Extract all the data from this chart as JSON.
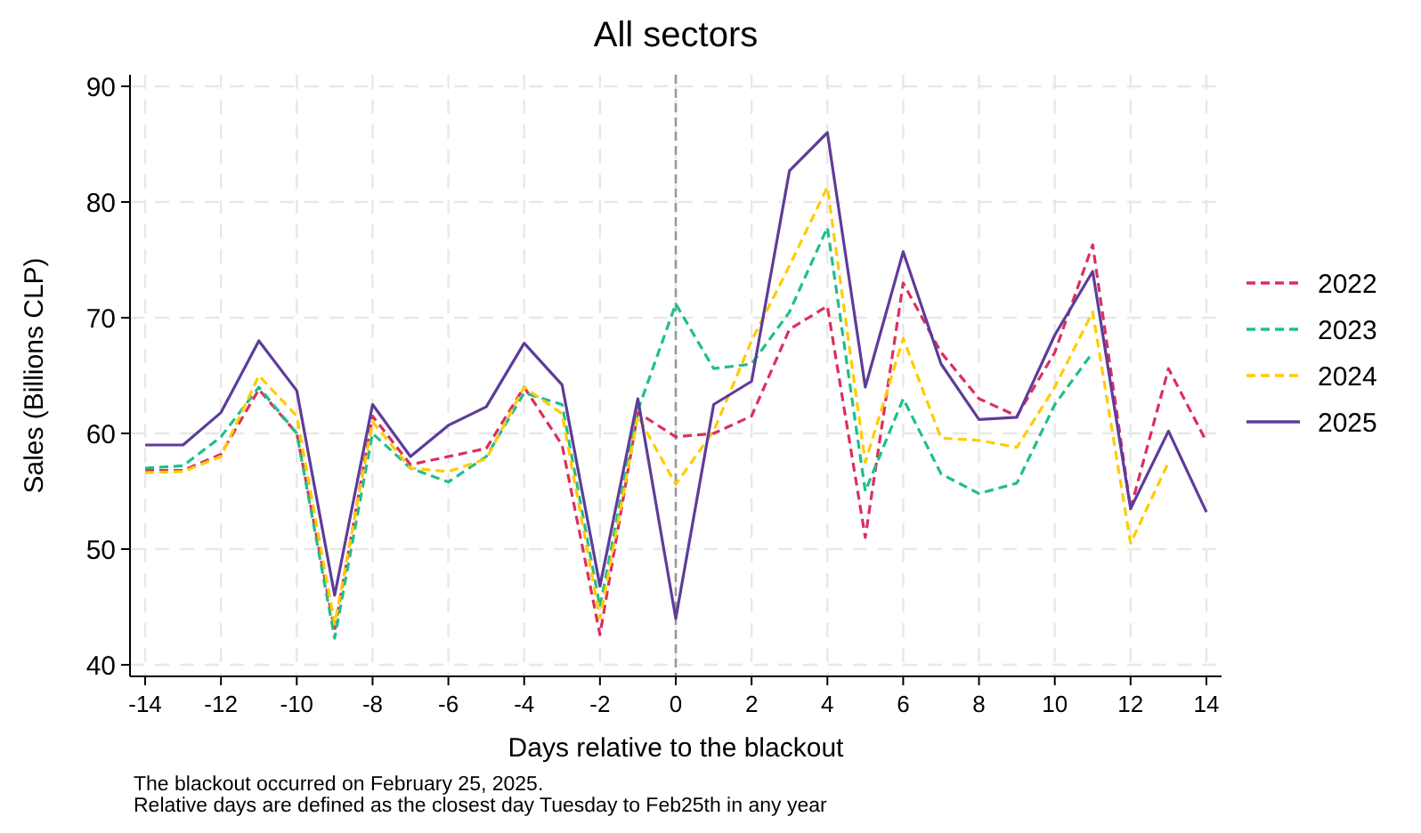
{
  "chart_data": {
    "type": "line",
    "title": "All sectors",
    "xlabel": "Days relative to the blackout",
    "ylabel": "Sales (Billions CLP)",
    "x": [
      -14,
      -13,
      -12,
      -11,
      -10,
      -9,
      -8,
      -7,
      -6,
      -5,
      -4,
      -3,
      -2,
      -1,
      0,
      1,
      2,
      3,
      4,
      5,
      6,
      7,
      8,
      9,
      10,
      11,
      12,
      13,
      14
    ],
    "series": [
      {
        "name": "2022",
        "color": "#dc2f5e",
        "line_style": "dashed",
        "values": [
          56.8,
          56.8,
          58.2,
          63.8,
          60,
          43,
          61.5,
          57.3,
          58,
          58.7,
          64,
          59,
          42.6,
          61.8,
          59.7,
          60,
          61.5,
          69,
          71,
          51,
          73,
          67,
          63,
          61.5,
          67,
          76.3,
          53.5,
          65.6,
          59.3
        ]
      },
      {
        "name": "2023",
        "color": "#1fbf8a",
        "line_style": "dashed",
        "values": [
          57,
          57.2,
          59.7,
          64,
          60,
          42.3,
          60,
          57,
          55.8,
          58,
          63.5,
          62.5,
          45,
          62,
          71.2,
          65.6,
          66,
          70.5,
          77.8,
          55,
          63,
          56.5,
          54.8,
          55.7,
          62.5,
          67,
          null,
          null,
          null
        ]
      },
      {
        "name": "2024",
        "color": "#ffcc00",
        "line_style": "dashed",
        "values": [
          56.6,
          56.7,
          58,
          65,
          61.5,
          43.5,
          61,
          57,
          56.7,
          57.8,
          64,
          61.7,
          44,
          61.5,
          55.6,
          60.2,
          68,
          74.5,
          81.3,
          57.5,
          68.2,
          59.6,
          59.4,
          58.8,
          64,
          70.5,
          50.5,
          57.5,
          null
        ]
      },
      {
        "name": "2025",
        "color": "#5e3c99",
        "line_style": "solid",
        "values": [
          59,
          59,
          61.8,
          68,
          63.7,
          46,
          62.5,
          58,
          60.7,
          62.3,
          67.8,
          64.2,
          46.8,
          63,
          44,
          62.5,
          64.5,
          82.7,
          86,
          64,
          75.7,
          66,
          61.2,
          61.4,
          68.5,
          74,
          53.5,
          60.2,
          53.2
        ]
      }
    ],
    "xlim": [
      -14.4,
      14.4
    ],
    "ylim": [
      39,
      91
    ],
    "xticks": [
      -14,
      -12,
      -10,
      -8,
      -6,
      -4,
      -2,
      0,
      2,
      4,
      6,
      8,
      10,
      12,
      14
    ],
    "yticks": [
      40,
      50,
      60,
      70,
      80,
      90
    ],
    "grid": true,
    "legend": "right",
    "ref_lines": [
      {
        "axis": "x",
        "value": 0,
        "color": "#999999",
        "line_style": "dashed"
      }
    ],
    "annotations": [
      "The blackout occurred on February 25, 2025.",
      "Relative days are defined as the closest day Tuesday to Feb25th in any year"
    ]
  }
}
